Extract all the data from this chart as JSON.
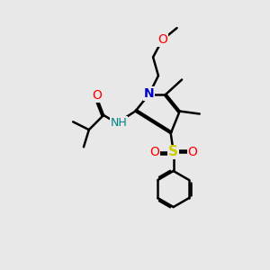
{
  "bg_color": "#e8e8e8",
  "atom_colors": {
    "N": "#0000cc",
    "O": "#ff0000",
    "S": "#cccc00",
    "NH_color": "#008080"
  },
  "bond_color": "#000000",
  "line_width": 1.8,
  "lw_thin": 1.2
}
